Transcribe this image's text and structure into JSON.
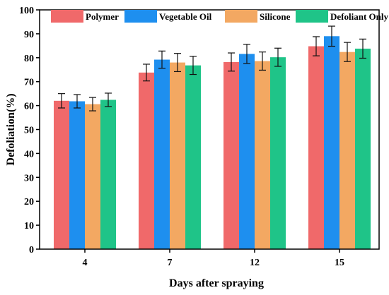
{
  "chart_data": {
    "type": "bar",
    "title": "",
    "xlabel": "Days after spraying",
    "ylabel": "Defoliation(%)",
    "ylim": [
      0,
      100
    ],
    "yticks": [
      0,
      10,
      20,
      30,
      40,
      50,
      60,
      70,
      80,
      90,
      100
    ],
    "categories": [
      "4",
      "7",
      "12",
      "15"
    ],
    "legend_position": "top",
    "grid": false,
    "series": [
      {
        "name": "Polymer",
        "color": "#f0696a",
        "values": [
          62.0,
          73.8,
          78.2,
          84.8
        ],
        "errors": [
          3.0,
          3.5,
          3.8,
          4.0
        ]
      },
      {
        "name": "Vegetable Oil",
        "color": "#1e8fef",
        "values": [
          61.8,
          79.2,
          81.6,
          89.0
        ],
        "errors": [
          2.8,
          3.6,
          4.0,
          4.2
        ]
      },
      {
        "name": "Silicone",
        "color": "#f3a862",
        "values": [
          60.6,
          78.0,
          78.6,
          82.4
        ],
        "errors": [
          2.8,
          3.8,
          3.8,
          4.0
        ]
      },
      {
        "name": "Defoliant Only",
        "color": "#1fc488",
        "values": [
          62.4,
          76.8,
          80.2,
          83.8
        ],
        "errors": [
          2.8,
          3.8,
          3.8,
          4.0
        ]
      }
    ]
  }
}
